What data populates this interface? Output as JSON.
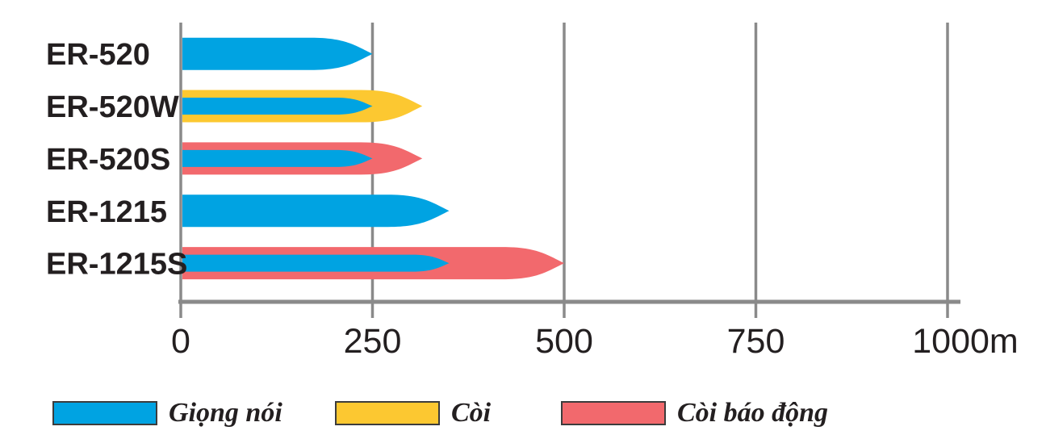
{
  "colors": {
    "voice": "#00A3E2",
    "whistle": "#FCC831",
    "alarm": "#F2696D",
    "axis": "#8A8A8A",
    "text": "#231F20"
  },
  "chart_data": {
    "type": "bar",
    "orientation": "horizontal",
    "title": "",
    "xlabel_unit": "m",
    "xlim": [
      0,
      1000
    ],
    "grid": true,
    "legend_position": "bottom",
    "categories": [
      "ER-520",
      "ER-520W",
      "ER-520S",
      "ER-1215",
      "ER-1215S"
    ],
    "series": [
      {
        "name": "Giọng nói",
        "key": "voice",
        "color": "#00A3E2",
        "values": [
          250,
          250,
          250,
          350,
          350
        ]
      },
      {
        "name": "Còi",
        "key": "whistle",
        "color": "#FCC831",
        "values": [
          null,
          315,
          null,
          null,
          null
        ]
      },
      {
        "name": "Còi báo động",
        "key": "alarm",
        "color": "#F2696D",
        "values": [
          null,
          null,
          315,
          null,
          500
        ]
      }
    ],
    "x_ticks": [
      {
        "value": 0,
        "label": "0"
      },
      {
        "value": 250,
        "label": "250"
      },
      {
        "value": 500,
        "label": "500"
      },
      {
        "value": 750,
        "label": "750"
      },
      {
        "value": 1000,
        "label": "1000m"
      }
    ]
  },
  "legend": {
    "items": [
      {
        "key": "voice",
        "label": "Giọng nói",
        "color": "#00A3E2"
      },
      {
        "key": "whistle",
        "label": "Còi",
        "color": "#FCC831"
      },
      {
        "key": "alarm",
        "label": "Còi báo động",
        "color": "#F2696D"
      }
    ]
  }
}
